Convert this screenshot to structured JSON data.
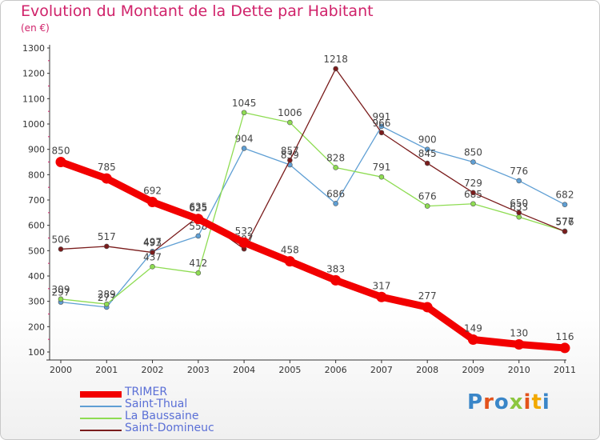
{
  "title": "Evolution du Montant de la Dette par Habitant",
  "subtitle": "(en €)",
  "chart_data": {
    "type": "line",
    "x": [
      "2000",
      "2001",
      "2002",
      "2003",
      "2004",
      "2005",
      "2006",
      "2007",
      "2008",
      "2009",
      "2010",
      "2011"
    ],
    "ylim": [
      100,
      1300
    ],
    "yticks": [
      100,
      200,
      300,
      400,
      500,
      600,
      700,
      800,
      900,
      1000,
      1100,
      1200,
      1300
    ],
    "grid": false,
    "legend_position": "bottom-left",
    "series": [
      {
        "name": "TRIMER",
        "color": "#f20000",
        "values": [
          850,
          785,
          692,
          625,
          532,
          458,
          383,
          317,
          277,
          149,
          130,
          116
        ]
      },
      {
        "name": "Saint-Thual",
        "color": "#5f9fd4",
        "values": [
          297,
          277,
          497,
          558,
          904,
          839,
          686,
          991,
          900,
          850,
          776,
          682
        ]
      },
      {
        "name": "La Baussaine",
        "color": "#8edc52",
        "values": [
          309,
          289,
          437,
          412,
          1045,
          1006,
          828,
          791,
          676,
          685,
          633,
          577
        ]
      },
      {
        "name": "Saint-Domineuc",
        "color": "#7a1c1c",
        "values": [
          506,
          517,
          493,
          635,
          507,
          857,
          1218,
          966,
          845,
          729,
          650,
          576
        ]
      }
    ]
  },
  "logo": {
    "text": "Proxiti",
    "colors": [
      "#3a86c8",
      "#e3521b",
      "#3a86c8",
      "#8cc63f",
      "#e3521b",
      "#f2a900",
      "#3a86c8"
    ]
  }
}
